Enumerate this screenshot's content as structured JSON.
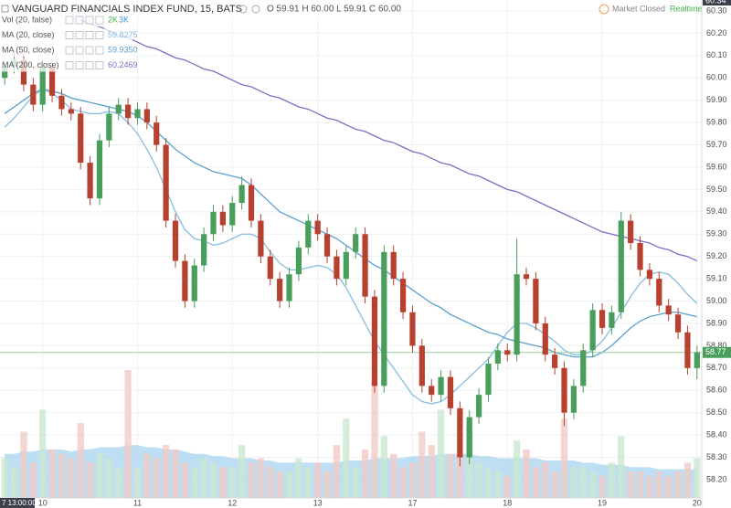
{
  "chart_data": {
    "type": "candlestick",
    "title": "VANGUARD FINANCIALS INDEX FUND, 15, BATS",
    "ohlc_legend": "O 59.91 H 60.00 L 59.91 C 60.00",
    "status": "Market Closed",
    "feed": "Realtime",
    "top_marker": "60.34",
    "categories": [
      "7 13:00:00",
      null,
      null,
      null,
      "10",
      null,
      null,
      null,
      null,
      null,
      null,
      null,
      null,
      null,
      "11",
      null,
      null,
      null,
      null,
      null,
      null,
      null,
      null,
      null,
      "12",
      null,
      null,
      null,
      null,
      null,
      null,
      null,
      null,
      "13",
      null,
      null,
      null,
      null,
      null,
      null,
      null,
      null,
      null,
      "17",
      null,
      null,
      null,
      null,
      null,
      null,
      null,
      null,
      null,
      "18",
      null,
      null,
      null,
      null,
      null,
      null,
      null,
      null,
      null,
      "19",
      null,
      null,
      null,
      null,
      null,
      null,
      null,
      null,
      null,
      "20"
    ],
    "open": [
      60.0,
      60.05,
      60.08,
      59.97,
      59.88,
      60.05,
      59.92,
      59.86,
      59.84,
      59.62,
      59.46,
      59.72,
      59.84,
      59.88,
      59.82,
      59.86,
      59.8,
      59.7,
      59.36,
      59.18,
      59.0,
      59.16,
      59.3,
      59.4,
      59.34,
      59.44,
      59.52,
      59.36,
      59.2,
      59.1,
      59.0,
      59.12,
      59.24,
      59.36,
      59.3,
      59.2,
      59.1,
      59.22,
      59.3,
      59.02,
      58.62,
      59.22,
      59.1,
      58.95,
      58.8,
      58.62,
      58.58,
      58.66,
      58.52,
      58.3,
      58.48,
      58.58,
      58.72,
      58.78,
      58.76,
      59.12,
      59.1,
      58.9,
      58.76,
      58.7,
      58.5,
      58.62,
      58.78,
      58.96,
      58.88,
      58.95,
      59.36,
      59.26,
      59.14,
      59.1,
      58.98,
      58.94,
      58.86,
      58.7
    ],
    "high": [
      60.08,
      60.11,
      60.11,
      60.0,
      60.08,
      60.08,
      59.95,
      59.89,
      59.87,
      59.65,
      59.75,
      59.87,
      59.91,
      59.91,
      59.89,
      59.89,
      59.83,
      59.73,
      59.39,
      59.21,
      59.19,
      59.33,
      59.43,
      59.43,
      59.47,
      59.56,
      59.55,
      59.39,
      59.23,
      59.13,
      59.15,
      59.27,
      59.39,
      59.39,
      59.33,
      59.23,
      59.25,
      59.33,
      59.33,
      59.05,
      59.25,
      59.25,
      59.13,
      58.98,
      58.83,
      58.65,
      58.69,
      58.69,
      58.55,
      58.51,
      58.61,
      58.75,
      58.81,
      58.81,
      59.28,
      59.15,
      59.13,
      58.93,
      58.79,
      58.73,
      58.65,
      58.81,
      58.99,
      58.99,
      58.98,
      59.4,
      59.39,
      59.29,
      59.17,
      59.13,
      59.01,
      58.97,
      58.89,
      58.8
    ],
    "low": [
      59.97,
      60.02,
      59.94,
      59.85,
      59.85,
      59.89,
      59.83,
      59.81,
      59.59,
      59.43,
      59.43,
      59.69,
      59.81,
      59.79,
      59.79,
      59.77,
      59.67,
      59.33,
      59.15,
      58.97,
      58.97,
      59.13,
      59.27,
      59.31,
      59.31,
      59.41,
      59.33,
      59.17,
      59.07,
      58.97,
      58.97,
      59.09,
      59.21,
      59.27,
      59.17,
      59.07,
      59.07,
      59.19,
      58.99,
      58.59,
      58.59,
      59.07,
      58.92,
      58.77,
      58.59,
      58.55,
      58.55,
      58.49,
      58.26,
      58.27,
      58.45,
      58.55,
      58.69,
      58.73,
      58.73,
      59.07,
      58.87,
      58.73,
      58.67,
      58.44,
      58.47,
      58.59,
      58.75,
      58.85,
      58.85,
      58.92,
      59.23,
      59.11,
      59.07,
      58.95,
      58.91,
      58.83,
      58.67,
      58.65
    ],
    "close": [
      60.05,
      60.08,
      59.97,
      59.88,
      60.05,
      59.92,
      59.86,
      59.84,
      59.62,
      59.46,
      59.72,
      59.84,
      59.88,
      59.82,
      59.86,
      59.8,
      59.7,
      59.36,
      59.18,
      59.0,
      59.16,
      59.3,
      59.4,
      59.34,
      59.44,
      59.52,
      59.36,
      59.2,
      59.1,
      59.0,
      59.12,
      59.24,
      59.36,
      59.3,
      59.2,
      59.1,
      59.22,
      59.3,
      59.02,
      58.62,
      59.22,
      59.1,
      58.95,
      58.8,
      58.62,
      58.58,
      58.66,
      58.52,
      58.3,
      58.48,
      58.58,
      58.72,
      58.78,
      58.76,
      59.12,
      59.1,
      58.9,
      58.76,
      58.7,
      58.5,
      58.62,
      58.78,
      58.96,
      58.88,
      58.95,
      59.36,
      59.26,
      59.14,
      59.1,
      58.98,
      58.94,
      58.86,
      58.7,
      58.77
    ],
    "up_color": "#4a9e5c",
    "down_color": "#b8402e",
    "volume": {
      "name": "Vol (20, false)",
      "value_label": "2K",
      "ma_label": "3K",
      "up_color": "#c9e7cf",
      "down_color": "#f0cbc5",
      "ma_color": "#a8d3ef",
      "values": [
        900,
        700,
        1500,
        800,
        2000,
        1100,
        1000,
        900,
        1700,
        800,
        1000,
        900,
        700,
        2900,
        700,
        1000,
        900,
        1200,
        1100,
        800,
        700,
        900,
        800,
        700,
        700,
        1200,
        800,
        900,
        700,
        600,
        600,
        900,
        700,
        800,
        600,
        1200,
        1800,
        700,
        1100,
        2600,
        1400,
        1000,
        700,
        800,
        1500,
        1200,
        2000,
        1000,
        1000,
        1600,
        800,
        700,
        600,
        500,
        1300,
        1100,
        700,
        800,
        600,
        1800,
        700,
        700,
        600,
        500,
        800,
        1400,
        600,
        600,
        500,
        600,
        500,
        600,
        800,
        900
      ],
      "ma_values": [
        1000,
        1000,
        1050,
        1050,
        1100,
        1100,
        1100,
        1050,
        1100,
        1100,
        1150,
        1150,
        1150,
        1200,
        1200,
        1150,
        1150,
        1100,
        1100,
        1050,
        1000,
        1000,
        950,
        950,
        900,
        900,
        900,
        850,
        850,
        800,
        800,
        800,
        800,
        800,
        800,
        800,
        850,
        850,
        850,
        900,
        900,
        900,
        900,
        950,
        950,
        950,
        1000,
        1000,
        1000,
        1000,
        950,
        950,
        900,
        900,
        900,
        900,
        900,
        850,
        850,
        850,
        850,
        800,
        800,
        750,
        750,
        750,
        700,
        700,
        700,
        650,
        650,
        650,
        650,
        650
      ]
    },
    "series": [
      {
        "name": "MA (20, close)",
        "color": "#86bde0",
        "legend_value": "59.8275",
        "values": [
          59.78,
          59.82,
          59.87,
          59.92,
          59.95,
          59.93,
          59.9,
          59.86,
          59.85,
          59.84,
          59.84,
          59.85,
          59.84,
          59.8,
          59.75,
          59.68,
          59.6,
          59.5,
          59.4,
          59.32,
          59.28,
          59.27,
          59.25,
          59.26,
          59.28,
          59.3,
          59.3,
          59.28,
          59.22,
          59.17,
          59.14,
          59.14,
          59.15,
          59.16,
          59.15,
          59.12,
          59.06,
          58.98,
          58.9,
          58.82,
          58.76,
          58.7,
          58.64,
          58.58,
          58.55,
          58.54,
          58.55,
          58.58,
          58.62,
          58.66,
          58.7,
          58.74,
          58.8,
          58.86,
          58.9,
          58.9,
          58.88,
          58.85,
          58.82,
          58.78,
          58.76,
          58.76,
          58.78,
          58.82,
          58.88,
          58.95,
          59.02,
          59.08,
          59.12,
          59.13,
          59.12,
          59.08,
          59.03,
          58.99
        ]
      },
      {
        "name": "MA (50, close)",
        "color": "#5a9fcf",
        "legend_value": "59.9350",
        "values": [
          59.84,
          59.87,
          59.9,
          59.93,
          59.95,
          59.94,
          59.93,
          59.91,
          59.9,
          59.89,
          59.88,
          59.87,
          59.86,
          59.85,
          59.83,
          59.8,
          59.76,
          59.72,
          59.68,
          59.65,
          59.62,
          59.6,
          59.58,
          59.57,
          59.56,
          59.55,
          59.52,
          59.48,
          59.44,
          59.4,
          59.38,
          59.36,
          59.34,
          59.32,
          59.3,
          59.28,
          59.25,
          59.22,
          59.19,
          59.16,
          59.14,
          59.11,
          59.08,
          59.05,
          59.02,
          58.99,
          58.97,
          58.94,
          58.92,
          58.9,
          58.88,
          58.86,
          58.85,
          58.83,
          58.82,
          58.81,
          58.8,
          58.79,
          58.77,
          58.76,
          58.75,
          58.75,
          58.75,
          58.77,
          58.8,
          58.84,
          58.88,
          58.91,
          58.93,
          58.94,
          58.95,
          58.95,
          58.94,
          58.93
        ]
      },
      {
        "name": "MA (200, close)",
        "color": "#7b6fc4",
        "legend_value": "60.2469",
        "values": [
          null,
          null,
          null,
          null,
          null,
          null,
          null,
          null,
          60.26,
          60.24,
          60.23,
          60.21,
          60.19,
          60.18,
          60.16,
          60.14,
          60.13,
          60.11,
          60.09,
          60.08,
          60.06,
          60.04,
          60.03,
          60.01,
          59.99,
          59.97,
          59.96,
          59.94,
          59.92,
          59.91,
          59.89,
          59.87,
          59.86,
          59.84,
          59.82,
          59.81,
          59.79,
          59.77,
          59.76,
          59.74,
          59.72,
          59.71,
          59.69,
          59.67,
          59.66,
          59.64,
          59.62,
          59.61,
          59.59,
          59.57,
          59.56,
          59.54,
          59.52,
          59.5,
          59.49,
          59.47,
          59.45,
          59.43,
          59.41,
          59.39,
          59.37,
          59.35,
          59.33,
          59.31,
          59.3,
          59.29,
          59.28,
          59.27,
          59.26,
          59.24,
          59.23,
          59.21,
          59.2,
          59.18
        ]
      }
    ],
    "last_price": {
      "value": 58.77,
      "label": "58.77"
    },
    "ylim": [
      58.118,
      60.349
    ],
    "yticks": [
      {
        "value": 58.2,
        "label": "58.20"
      },
      {
        "value": 58.3,
        "label": "58.30"
      },
      {
        "value": 58.4,
        "label": "58.40"
      },
      {
        "value": 58.5,
        "label": "58.50"
      },
      {
        "value": 58.6,
        "label": "58.60"
      },
      {
        "value": 58.7,
        "label": "58.70"
      },
      {
        "value": 58.8,
        "label": "58.80"
      },
      {
        "value": 58.9,
        "label": "58.90"
      },
      {
        "value": 59.0,
        "label": "59.00"
      },
      {
        "value": 59.1,
        "label": "59.10"
      },
      {
        "value": 59.2,
        "label": "59.20"
      },
      {
        "value": 59.3,
        "label": "59.30"
      },
      {
        "value": 59.4,
        "label": "59.40"
      },
      {
        "value": 59.5,
        "label": "59.50"
      },
      {
        "value": 59.6,
        "label": "59.60"
      },
      {
        "value": 59.7,
        "label": "59.70"
      },
      {
        "value": 59.8,
        "label": "59.80"
      },
      {
        "value": 59.9,
        "label": "59.90"
      },
      {
        "value": 60.0,
        "label": "60.00"
      },
      {
        "value": 60.1,
        "label": "60.10"
      },
      {
        "value": 60.2,
        "label": "60.20"
      },
      {
        "value": 60.3,
        "label": "60.30"
      }
    ],
    "grid": true
  }
}
